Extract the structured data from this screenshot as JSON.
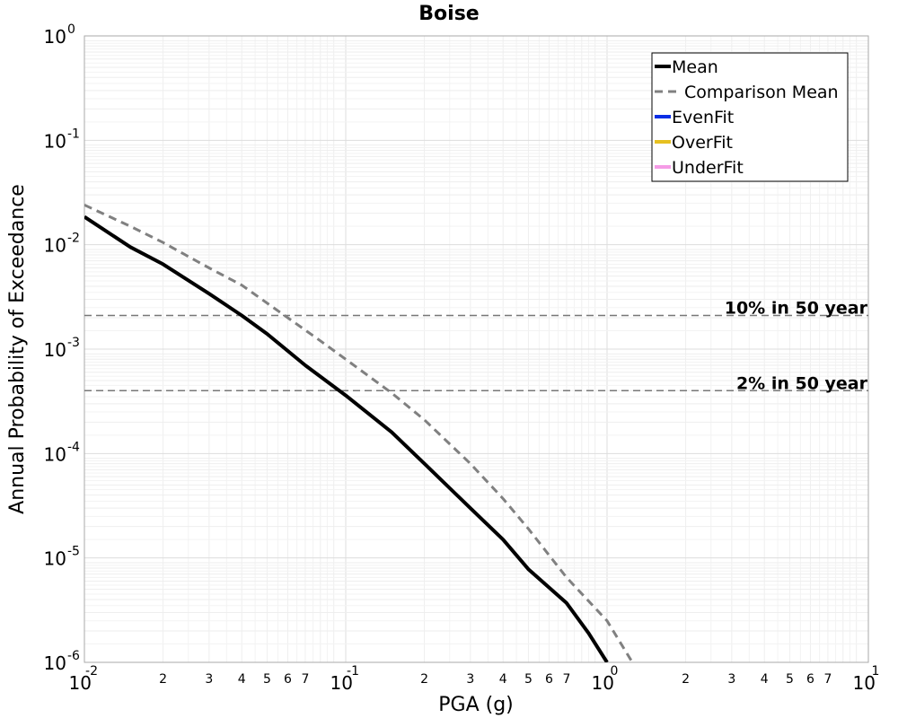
{
  "chart_data": {
    "type": "line",
    "title": "Boise",
    "xlabel": "PGA (g)",
    "ylabel": "Annual Probability of Exceedance",
    "x_scale": "log",
    "y_scale": "log",
    "xlim": [
      0.01,
      10
    ],
    "ylim": [
      1e-06,
      1
    ],
    "grid": true,
    "legend_position": "top-right",
    "x_major_ticks": [
      {
        "base": "10",
        "exp": "-2"
      },
      {
        "base": "10",
        "exp": "-1"
      },
      {
        "base": "10",
        "exp": "0"
      },
      {
        "base": "10",
        "exp": "1"
      }
    ],
    "x_minor_tick_labels": [
      "2",
      "3",
      "4",
      "5",
      "6",
      "7"
    ],
    "y_major_ticks": [
      {
        "base": "10",
        "exp": "0"
      },
      {
        "base": "10",
        "exp": "-1"
      },
      {
        "base": "10",
        "exp": "-2"
      },
      {
        "base": "10",
        "exp": "-3"
      },
      {
        "base": "10",
        "exp": "-4"
      },
      {
        "base": "10",
        "exp": "-5"
      },
      {
        "base": "10",
        "exp": "-6"
      }
    ],
    "reference_lines": [
      {
        "label": "10% in 50 year",
        "y": 0.0021
      },
      {
        "label": "2% in 50 year",
        "y": 0.0004
      }
    ],
    "series": [
      {
        "name": "Mean",
        "color": "#000000",
        "style": "solid",
        "x": [
          0.01,
          0.015,
          0.02,
          0.03,
          0.04,
          0.05,
          0.07,
          0.1,
          0.15,
          0.2,
          0.3,
          0.4,
          0.5,
          0.7,
          0.85,
          1.0
        ],
        "y": [
          0.0185,
          0.0095,
          0.0065,
          0.0034,
          0.0021,
          0.0014,
          0.0007,
          0.00036,
          0.00016,
          8e-05,
          3e-05,
          1.5e-05,
          7.8e-06,
          3.7e-06,
          1.9e-06,
          1e-06
        ]
      },
      {
        "name": "Comparison Mean",
        "color": "#808080",
        "style": "dashed",
        "x": [
          0.01,
          0.015,
          0.02,
          0.03,
          0.04,
          0.06,
          0.08,
          0.1,
          0.15,
          0.2,
          0.3,
          0.4,
          0.5,
          0.7,
          1.0,
          1.25
        ],
        "y": [
          0.024,
          0.015,
          0.0105,
          0.006,
          0.0041,
          0.002,
          0.0012,
          0.0008,
          0.00038,
          0.00021,
          8e-05,
          3.7e-05,
          1.9e-05,
          6.5e-06,
          2.5e-06,
          1e-06
        ]
      },
      {
        "name": "EvenFit",
        "color": "#0a2ee6",
        "style": "solid",
        "x": [],
        "y": []
      },
      {
        "name": "OverFit",
        "color": "#e6c020",
        "style": "solid",
        "x": [],
        "y": []
      },
      {
        "name": "UnderFit",
        "color": "#f59be6",
        "style": "solid",
        "x": [],
        "y": []
      }
    ]
  }
}
